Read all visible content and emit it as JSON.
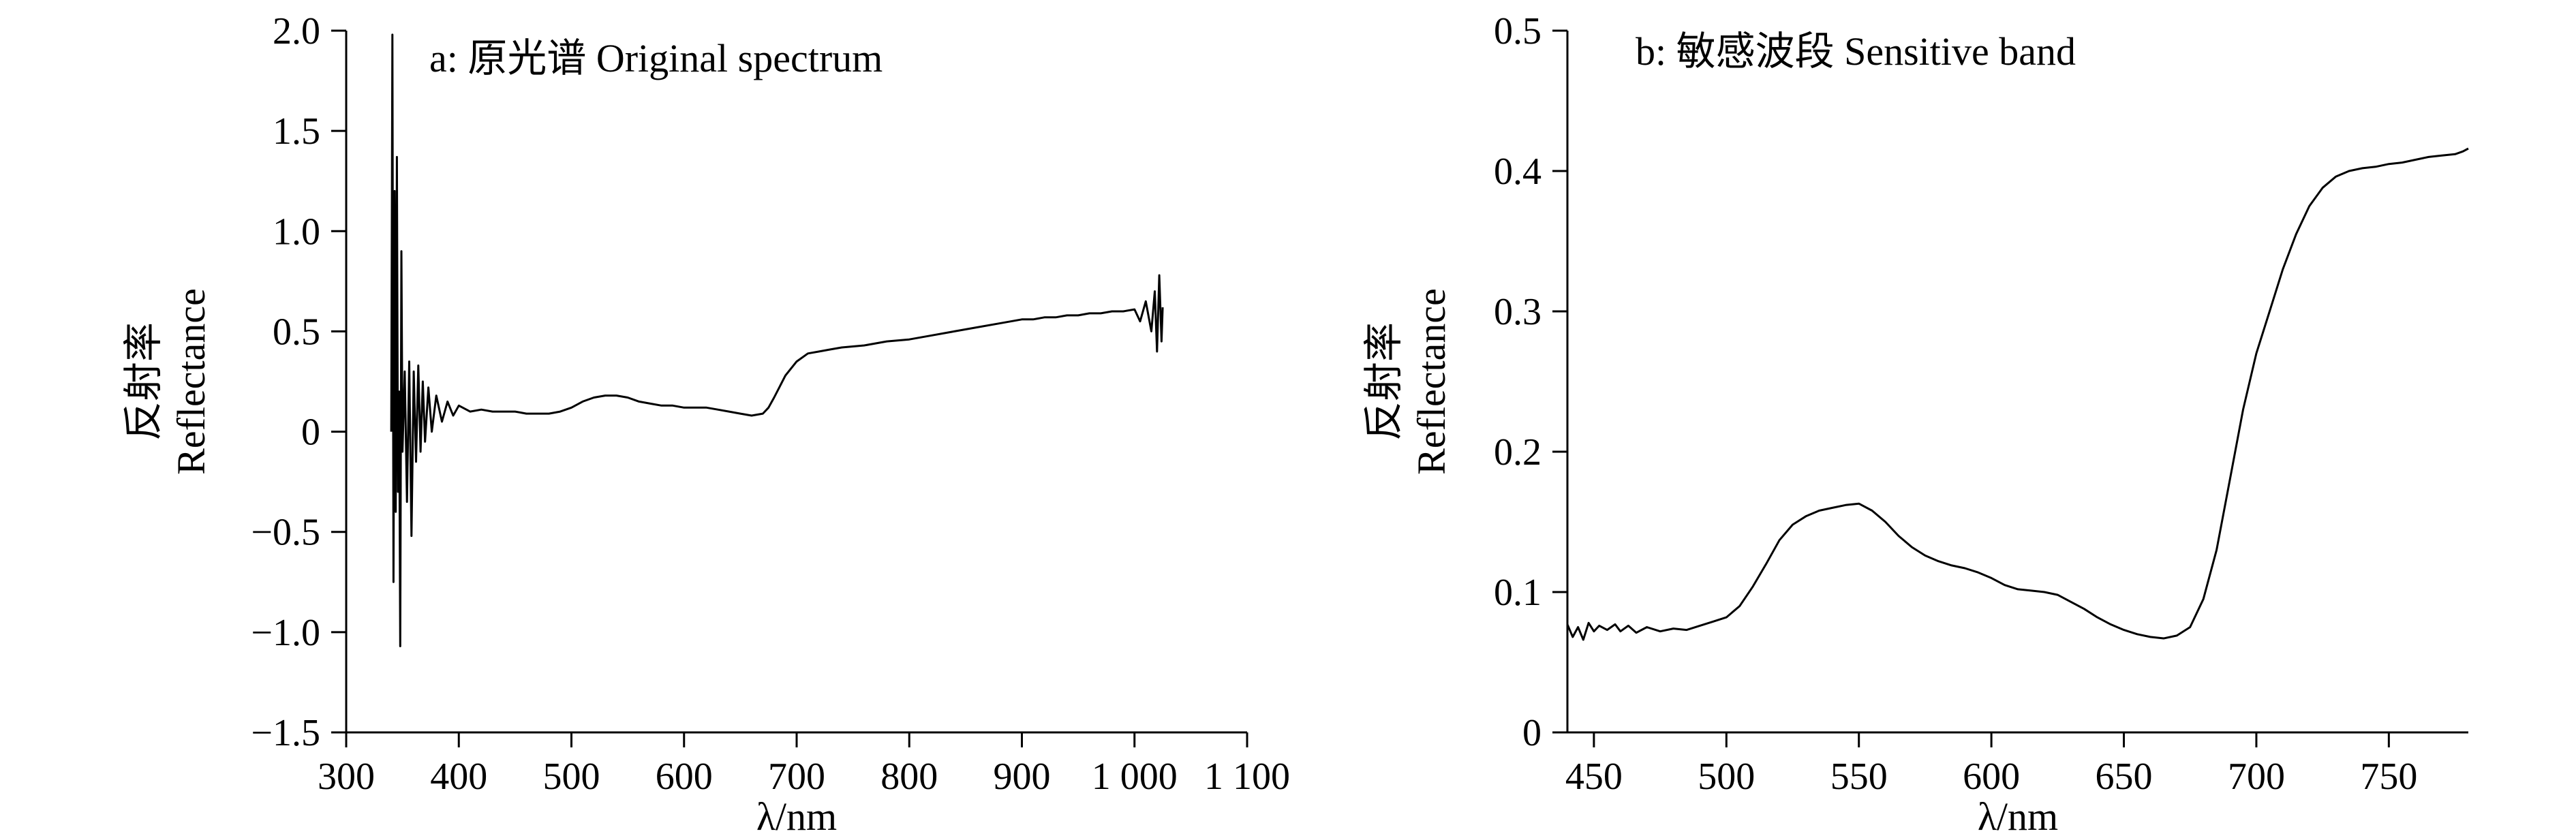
{
  "chart_data": [
    {
      "type": "line",
      "title": "a: 原光谱 Original spectrum",
      "ylabel_cn": "反射率",
      "ylabel": "Reflectance",
      "xlabel": "λ/nm",
      "xlim": [
        300,
        1100
      ],
      "ylim": [
        -1.5,
        2.0
      ],
      "grid": false,
      "xticks": [
        300,
        400,
        500,
        600,
        700,
        800,
        900,
        1000,
        1100
      ],
      "xtick_labels": [
        "300",
        "400",
        "500",
        "600",
        "700",
        "800",
        "900",
        "1 000",
        "1 100"
      ],
      "yticks": [
        -1.5,
        -1.0,
        -0.5,
        0,
        0.5,
        1.0,
        1.5,
        2.0
      ],
      "ytick_labels": [
        "−1.5",
        "−1.0",
        "−0.5",
        "0",
        "0.5",
        "1.0",
        "1.5",
        "2.0"
      ],
      "series": [
        {
          "color": "#000000",
          "x": [
            340,
            341,
            342,
            343,
            344,
            345,
            346,
            347,
            348,
            349,
            350,
            352,
            354,
            356,
            358,
            360,
            362,
            364,
            366,
            368,
            370,
            373,
            376,
            380,
            385,
            390,
            395,
            400,
            410,
            420,
            430,
            440,
            450,
            460,
            470,
            480,
            490,
            500,
            510,
            520,
            530,
            540,
            550,
            560,
            570,
            580,
            590,
            600,
            610,
            620,
            630,
            640,
            650,
            660,
            670,
            675,
            680,
            690,
            700,
            710,
            720,
            730,
            740,
            760,
            780,
            800,
            820,
            840,
            860,
            880,
            900,
            910,
            920,
            930,
            940,
            950,
            960,
            970,
            980,
            990,
            1000,
            1005,
            1010,
            1015,
            1018,
            1020,
            1022,
            1024,
            1025
          ],
          "values": [
            0.0,
            1.98,
            -0.75,
            1.2,
            -0.4,
            1.37,
            -0.3,
            0.2,
            -1.07,
            0.9,
            -0.1,
            0.3,
            -0.35,
            0.35,
            -0.52,
            0.3,
            -0.15,
            0.33,
            -0.1,
            0.25,
            -0.05,
            0.22,
            0.0,
            0.18,
            0.05,
            0.15,
            0.08,
            0.13,
            0.1,
            0.11,
            0.1,
            0.1,
            0.1,
            0.09,
            0.09,
            0.09,
            0.1,
            0.12,
            0.15,
            0.17,
            0.18,
            0.18,
            0.17,
            0.15,
            0.14,
            0.13,
            0.13,
            0.12,
            0.12,
            0.12,
            0.11,
            0.1,
            0.09,
            0.08,
            0.09,
            0.12,
            0.17,
            0.28,
            0.35,
            0.39,
            0.4,
            0.41,
            0.42,
            0.43,
            0.45,
            0.46,
            0.48,
            0.5,
            0.52,
            0.54,
            0.56,
            0.56,
            0.57,
            0.57,
            0.58,
            0.58,
            0.59,
            0.59,
            0.6,
            0.6,
            0.61,
            0.55,
            0.65,
            0.5,
            0.7,
            0.4,
            0.78,
            0.45,
            0.62
          ]
        }
      ]
    },
    {
      "type": "line",
      "title": "b: 敏感波段 Sensitive band",
      "ylabel_cn": "反射率",
      "ylabel": "Reflectance",
      "xlabel": "λ/nm",
      "xlim": [
        440,
        780
      ],
      "ylim": [
        0,
        0.5
      ],
      "grid": false,
      "xticks": [
        450,
        500,
        550,
        600,
        650,
        700,
        750
      ],
      "xtick_labels": [
        "450",
        "500",
        "550",
        "600",
        "650",
        "700",
        "750"
      ],
      "yticks": [
        0,
        0.1,
        0.2,
        0.3,
        0.4,
        0.5
      ],
      "ytick_labels": [
        "0",
        "0.1",
        "0.2",
        "0.3",
        "0.4",
        "0.5"
      ],
      "series": [
        {
          "color": "#000000",
          "x": [
            440,
            442,
            444,
            446,
            448,
            450,
            452,
            455,
            458,
            460,
            463,
            466,
            470,
            475,
            480,
            485,
            490,
            495,
            500,
            505,
            510,
            515,
            520,
            525,
            530,
            535,
            540,
            545,
            550,
            555,
            560,
            565,
            570,
            575,
            580,
            585,
            590,
            595,
            600,
            605,
            610,
            615,
            620,
            625,
            630,
            635,
            640,
            645,
            650,
            655,
            660,
            665,
            670,
            675,
            680,
            685,
            690,
            695,
            700,
            705,
            710,
            715,
            720,
            725,
            730,
            735,
            740,
            745,
            750,
            755,
            760,
            765,
            770,
            775,
            778,
            780
          ],
          "values": [
            0.077,
            0.068,
            0.075,
            0.066,
            0.078,
            0.072,
            0.076,
            0.073,
            0.077,
            0.072,
            0.076,
            0.071,
            0.075,
            0.072,
            0.074,
            0.073,
            0.076,
            0.079,
            0.082,
            0.09,
            0.104,
            0.12,
            0.137,
            0.148,
            0.154,
            0.158,
            0.16,
            0.162,
            0.163,
            0.158,
            0.15,
            0.14,
            0.132,
            0.126,
            0.122,
            0.119,
            0.117,
            0.114,
            0.11,
            0.105,
            0.102,
            0.101,
            0.1,
            0.098,
            0.093,
            0.088,
            0.082,
            0.077,
            0.073,
            0.07,
            0.068,
            0.067,
            0.069,
            0.075,
            0.095,
            0.13,
            0.18,
            0.23,
            0.27,
            0.3,
            0.33,
            0.355,
            0.375,
            0.388,
            0.396,
            0.4,
            0.402,
            0.403,
            0.405,
            0.406,
            0.408,
            0.41,
            0.411,
            0.412,
            0.414,
            0.416
          ]
        }
      ]
    }
  ]
}
